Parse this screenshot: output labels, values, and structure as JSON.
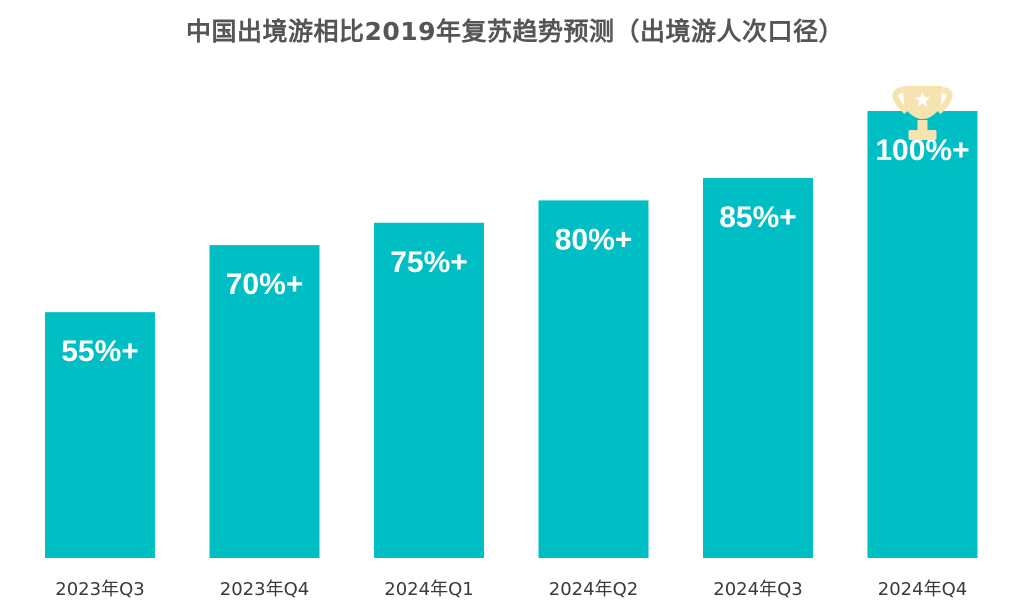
{
  "chart_data": {
    "type": "bar",
    "title": "中国出境游相比2019年复苏趋势预测（出境游人次口径）",
    "categories": [
      "2023年Q3",
      "2023年Q4",
      "2024年Q1",
      "2024年Q2",
      "2024年Q3",
      "2024年Q4"
    ],
    "values": [
      55,
      70,
      75,
      80,
      85,
      100
    ],
    "value_labels": [
      "55%+",
      "70%+",
      "75%+",
      "80%+",
      "85%+",
      "100%+"
    ],
    "ylim": [
      0,
      100
    ],
    "grid": false,
    "legend": "none",
    "highlight": {
      "category_index": 5,
      "icon": "trophy-icon"
    }
  },
  "colors": {
    "bar": "#00BFC4",
    "trophy": "#F6E3B0",
    "star": "#FFFFFF",
    "title": "#555555",
    "axis_text": "#3A3A3A"
  }
}
